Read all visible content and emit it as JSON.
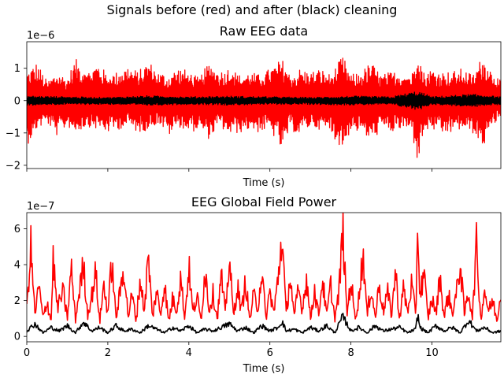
{
  "figure": {
    "suptitle": "Signals before (red) and after (black) cleaning"
  },
  "chart_data": [
    {
      "type": "line",
      "title": "Raw EEG data",
      "xlabel": "Time (s)",
      "ylabel": "",
      "y_offset_label": "1e−6",
      "xlim": [
        0,
        11.7
      ],
      "ylim": [
        -2.1e-06,
        1.82e-06
      ],
      "x_ticks": [
        0,
        2,
        4,
        6,
        8,
        10
      ],
      "x_tick_labels_shown": false,
      "y_ticks": [
        -2,
        -1,
        0,
        1
      ],
      "y_tick_labels": [
        "−2",
        "−1",
        "0",
        "1"
      ],
      "y_scale": 1e-06,
      "grid": false,
      "series": [
        {
          "color": "#ff0000",
          "description_of_values": "before cleaning",
          "x": [
            0,
            0.25,
            0.5,
            0.75,
            1.0,
            1.2,
            1.5,
            1.75,
            2.0,
            2.25,
            2.5,
            2.75,
            3.0,
            3.25,
            3.5,
            3.75,
            4.0,
            4.25,
            4.5,
            4.75,
            5.0,
            5.25,
            5.5,
            5.75,
            6.0,
            6.3,
            6.5,
            6.75,
            7.0,
            7.25,
            7.5,
            7.8,
            8.0,
            8.25,
            8.5,
            8.75,
            9.0,
            9.25,
            9.5,
            9.65,
            9.8,
            10.0,
            10.25,
            10.5,
            10.75,
            11.0,
            11.25,
            11.5,
            11.7
          ],
          "upper": [
            0.9,
            1.2,
            0.6,
            0.9,
            0.7,
            1.3,
            0.9,
            1.2,
            0.8,
            0.9,
            1.1,
            0.9,
            1.25,
            0.9,
            0.8,
            1.05,
            0.9,
            0.7,
            1.2,
            0.9,
            1.05,
            0.8,
            0.9,
            0.8,
            1.0,
            1.3,
            0.8,
            1.0,
            0.9,
            1.0,
            0.8,
            1.4,
            0.8,
            0.9,
            1.2,
            0.8,
            0.9,
            0.9,
            0.8,
            1.65,
            0.9,
            1.0,
            0.9,
            0.9,
            1.0,
            0.8,
            1.4,
            0.9,
            0.6
          ],
          "lower": [
            -1.4,
            -0.9,
            -0.7,
            -1.1,
            -0.8,
            -1.0,
            -0.8,
            -0.9,
            -1.0,
            -0.9,
            -0.8,
            -1.0,
            -0.9,
            -0.7,
            -1.1,
            -0.8,
            -1.0,
            -0.9,
            -1.2,
            -0.8,
            -1.1,
            -1.0,
            -0.9,
            -1.0,
            -0.9,
            -1.6,
            -0.9,
            -1.1,
            -0.8,
            -0.9,
            -1.0,
            -1.55,
            -0.9,
            -1.0,
            -1.3,
            -0.9,
            -1.0,
            -0.9,
            -1.0,
            -1.95,
            -1.0,
            -0.9,
            -1.1,
            -1.0,
            -0.9,
            -1.0,
            -1.5,
            -0.8,
            -0.5
          ]
        },
        {
          "color": "#000000",
          "description_of_values": "after cleaning",
          "x": [
            0,
            1,
            2,
            3,
            4,
            5,
            6,
            7,
            8,
            9,
            9.65,
            10,
            11,
            11.7
          ],
          "upper": [
            0.15,
            0.12,
            0.1,
            0.15,
            0.12,
            0.14,
            0.12,
            0.1,
            0.14,
            0.12,
            0.3,
            0.12,
            0.2,
            0.12
          ],
          "lower": [
            -0.15,
            -0.12,
            -0.12,
            -0.15,
            -0.12,
            -0.14,
            -0.12,
            -0.12,
            -0.14,
            -0.12,
            -0.3,
            -0.12,
            -0.2,
            -0.12
          ]
        }
      ]
    },
    {
      "type": "line",
      "title": "EEG Global Field Power",
      "xlabel": "Time (s)",
      "ylabel": "",
      "y_offset_label": "1e−7",
      "xlim": [
        0,
        11.7
      ],
      "ylim": [
        -3e-08,
        6.9e-07
      ],
      "x_ticks": [
        0,
        2,
        4,
        6,
        8,
        10
      ],
      "x_tick_labels": [
        "0",
        "2",
        "4",
        "6",
        "8",
        "10"
      ],
      "y_ticks": [
        0,
        2,
        4,
        6
      ],
      "y_tick_labels": [
        "0",
        "2",
        "4",
        "6"
      ],
      "y_scale": 1e-07,
      "grid": false,
      "series": [
        {
          "color": "#ff0000",
          "description_of_values": "before cleaning",
          "x": [
            0,
            0.1,
            0.2,
            0.3,
            0.4,
            0.5,
            0.6,
            0.65,
            0.75,
            0.9,
            1.0,
            1.1,
            1.2,
            1.3,
            1.4,
            1.5,
            1.6,
            1.7,
            1.8,
            1.9,
            2.0,
            2.1,
            2.2,
            2.3,
            2.4,
            2.5,
            2.6,
            2.7,
            2.8,
            2.9,
            3.0,
            3.1,
            3.2,
            3.3,
            3.4,
            3.5,
            3.6,
            3.7,
            3.8,
            3.9,
            4.0,
            4.1,
            4.2,
            4.3,
            4.4,
            4.5,
            4.6,
            4.7,
            4.8,
            4.9,
            5.0,
            5.1,
            5.2,
            5.3,
            5.4,
            5.5,
            5.6,
            5.7,
            5.8,
            5.9,
            6.0,
            6.1,
            6.2,
            6.3,
            6.4,
            6.5,
            6.6,
            6.7,
            6.8,
            6.9,
            7.0,
            7.1,
            7.2,
            7.3,
            7.4,
            7.5,
            7.6,
            7.7,
            7.8,
            7.9,
            8.0,
            8.1,
            8.2,
            8.3,
            8.4,
            8.5,
            8.6,
            8.7,
            8.8,
            8.9,
            9.0,
            9.1,
            9.2,
            9.3,
            9.4,
            9.5,
            9.6,
            9.65,
            9.7,
            9.8,
            9.9,
            10.0,
            10.1,
            10.2,
            10.3,
            10.4,
            10.5,
            10.6,
            10.7,
            10.8,
            10.9,
            11.0,
            11.1,
            11.2,
            11.3,
            11.4,
            11.5,
            11.6,
            11.7
          ],
          "values": [
            1.5,
            5.0,
            1.2,
            2.8,
            1.0,
            2.0,
            0.8,
            4.35,
            1.6,
            2.5,
            1.0,
            3.8,
            0.9,
            2.6,
            4.0,
            1.2,
            2.2,
            3.6,
            0.8,
            2.9,
            1.3,
            4.2,
            1.0,
            2.4,
            3.9,
            1.1,
            2.3,
            0.9,
            3.2,
            1.4,
            4.5,
            1.0,
            2.6,
            1.2,
            3.0,
            0.8,
            2.1,
            1.5,
            3.3,
            1.0,
            3.9,
            1.3,
            2.2,
            0.9,
            3.8,
            1.5,
            2.4,
            1.0,
            3.4,
            1.2,
            4.4,
            1.1,
            2.8,
            1.4,
            3.1,
            0.9,
            2.3,
            1.6,
            3.6,
            1.0,
            2.5,
            1.3,
            3.2,
            5.65,
            1.2,
            3.4,
            1.0,
            2.7,
            1.5,
            3.3,
            1.0,
            2.6,
            1.2,
            3.2,
            1.1,
            2.9,
            1.0,
            2.3,
            6.0,
            1.2,
            3.2,
            1.0,
            2.2,
            4.7,
            1.1,
            2.8,
            1.0,
            3.0,
            1.4,
            2.5,
            1.2,
            3.6,
            1.0,
            2.7,
            1.3,
            3.0,
            1.0,
            6.6,
            2.2,
            3.6,
            1.0,
            2.1,
            1.3,
            3.4,
            1.0,
            2.4,
            1.3,
            2.3,
            4.1,
            1.2,
            2.5,
            1.1,
            5.15,
            1.0,
            2.6,
            1.4,
            2.0,
            0.9,
            2.4
          ]
        },
        {
          "color": "#000000",
          "description_of_values": "after cleaning",
          "x": [
            0,
            0.2,
            0.4,
            0.6,
            0.8,
            1.0,
            1.2,
            1.4,
            1.6,
            1.8,
            2.0,
            2.2,
            2.4,
            2.6,
            2.8,
            3.0,
            3.2,
            3.4,
            3.6,
            3.8,
            4.0,
            4.2,
            4.4,
            4.6,
            4.8,
            5.0,
            5.2,
            5.4,
            5.6,
            5.8,
            6.0,
            6.2,
            6.3,
            6.4,
            6.6,
            6.8,
            7.0,
            7.2,
            7.4,
            7.6,
            7.8,
            8.0,
            8.2,
            8.4,
            8.6,
            8.8,
            9.0,
            9.2,
            9.4,
            9.6,
            9.65,
            9.7,
            9.9,
            10.1,
            10.3,
            10.5,
            10.7,
            10.9,
            11.1,
            11.3,
            11.5,
            11.7
          ],
          "values": [
            0.3,
            0.7,
            0.2,
            0.5,
            0.3,
            0.6,
            0.2,
            0.8,
            0.3,
            0.5,
            0.2,
            0.6,
            0.3,
            0.4,
            0.2,
            0.6,
            0.4,
            0.2,
            0.5,
            0.3,
            0.6,
            0.2,
            0.4,
            0.3,
            0.5,
            0.7,
            0.3,
            0.5,
            0.2,
            0.6,
            0.3,
            0.5,
            0.85,
            0.3,
            0.4,
            0.2,
            0.5,
            0.3,
            0.6,
            0.2,
            1.1,
            0.3,
            0.5,
            0.2,
            0.6,
            0.3,
            0.4,
            0.5,
            0.2,
            0.4,
            1.25,
            0.5,
            0.2,
            0.6,
            0.3,
            0.5,
            0.2,
            0.9,
            0.3,
            0.5,
            0.2,
            0.3
          ]
        }
      ]
    }
  ]
}
